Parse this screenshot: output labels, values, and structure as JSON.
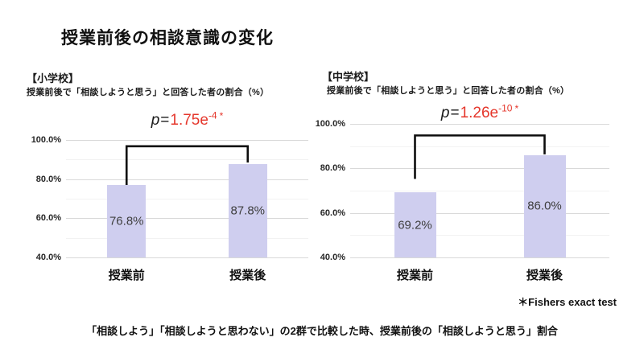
{
  "page": {
    "title": "授業前後の相談意識の変化",
    "footnote_significance": "＊Fishers exact test",
    "bottom_caption": "「相談しよう」「相談しようと思わない」の2群で比較した時、授業前後の「相談しようと思う」割合",
    "colors": {
      "bar_fill": "#cfceef",
      "p_value_red": "#e5372c",
      "grid_major": "#d9d9d9",
      "grid_minor": "#f2f2f2",
      "bar_label": "#3f3f3f",
      "bracket": "#0d0d0d"
    }
  },
  "chart_data": [
    {
      "type": "bar",
      "section_label": "【小学校】",
      "subtitle": "授業前後で「相談しようと思う」と回答した者の割合（%）",
      "categories": [
        "授業前",
        "授業後"
      ],
      "values": [
        76.8,
        87.8
      ],
      "value_labels": [
        "76.8%",
        "87.8%"
      ],
      "ylim": [
        40,
        100
      ],
      "yticks": [
        {
          "value": 100,
          "label": "100.0%"
        },
        {
          "value": 80,
          "label": "80.0%"
        },
        {
          "value": 60,
          "label": "60.0%"
        },
        {
          "value": 40,
          "label": "40.0%"
        }
      ],
      "minor_gridlines": [
        90,
        70,
        50
      ],
      "grid": true,
      "legend": false,
      "p_value": {
        "p": "p",
        "eq": "=",
        "value": "1.75e",
        "exponent": "-4",
        "star": "*"
      },
      "significance_bracket": {
        "top": 96.8,
        "left_bottom": 77.0,
        "right_bottom": 88.5
      }
    },
    {
      "type": "bar",
      "section_label": "【中学校】",
      "subtitle": "授業前後で「相談しようと思う」と回答した者の割合（%）",
      "categories": [
        "授業前",
        "授業後"
      ],
      "values": [
        69.2,
        86.0
      ],
      "value_labels": [
        "69.2%",
        "86.0%"
      ],
      "ylim": [
        40,
        100
      ],
      "yticks": [
        {
          "value": 100,
          "label": "100.0%"
        },
        {
          "value": 80,
          "label": "80.0%"
        },
        {
          "value": 60,
          "label": "60.0%"
        },
        {
          "value": 40,
          "label": "40.0%"
        }
      ],
      "minor_gridlines": [
        90,
        70,
        50
      ],
      "grid": true,
      "legend": false,
      "p_value": {
        "p": "p",
        "eq": "=",
        "value": "1.26e",
        "exponent": "-10",
        "star": "*"
      },
      "significance_bracket": {
        "top": 94.8,
        "left_bottom": 75.3,
        "right_bottom": 86.3
      }
    }
  ]
}
